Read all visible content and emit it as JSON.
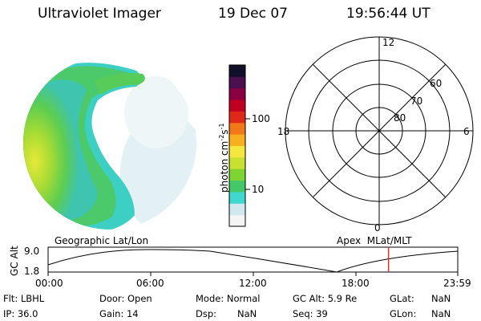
{
  "header": {
    "instrument": "Ultraviolet Imager",
    "date": "19 Dec 07",
    "time": "19:56:44 UT"
  },
  "colorbar": {
    "unit_label": "photon cm",
    "unit_exp1": "-2",
    "unit_mid": "s",
    "unit_exp2": "-1",
    "ticks": [
      "100",
      "10"
    ]
  },
  "polar_plot": {
    "mlt_labels": [
      "12",
      "18",
      "6",
      "0"
    ],
    "mlat_labels": [
      "60",
      "70",
      "80"
    ]
  },
  "orbit_plot": {
    "left_title": "Geographic Lat/Lon",
    "right_title": "Apex  MLat/MLT",
    "ylabel": "GC Alt",
    "ytick_top": "9.0",
    "ytick_bottom": "1.8",
    "x_ticks": [
      "00:00",
      "06:00",
      "12:00",
      "18:00",
      "23:59"
    ],
    "current_time_fraction": 0.831
  },
  "info": {
    "filter": "Flt: LBHL",
    "ip": "IP: 36.0",
    "door": "Door: Open",
    "gain": "Gain: 14",
    "mode": "Mode: Normal",
    "dsp": "Dsp:",
    "dsp_value": "NaN",
    "gc_alt": "GC Alt: 5.9 Re",
    "seq": "Seq: 39",
    "glat_label": "GLat:",
    "glat_value": "NaN",
    "glon_label": "GLon:",
    "glon_value": "NaN"
  },
  "colors": {
    "marker": "#cc3333",
    "colorbar": [
      "#f4f4f4",
      "#cfe9ee",
      "#3fd8d0",
      "#44c86a",
      "#7ed430",
      "#c8e030",
      "#f4e840",
      "#f8b020",
      "#f07818",
      "#e02818",
      "#c00020",
      "#8a0040",
      "#4a1050",
      "#10102a"
    ]
  }
}
